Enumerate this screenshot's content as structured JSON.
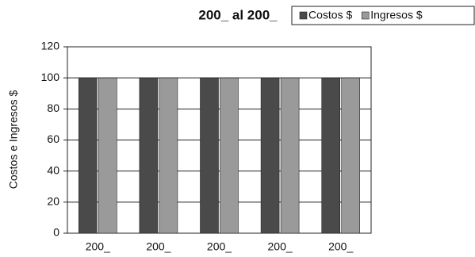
{
  "chart_data": {
    "type": "bar",
    "title": "200_ al 200_",
    "y_label": "Costos e Ingresos $",
    "categories": [
      "200_",
      "200_",
      "200_",
      "200_",
      "200_"
    ],
    "series": [
      {
        "name": "Costos $",
        "color": "#4a4a4a",
        "values": [
          100,
          100,
          100,
          100,
          100
        ]
      },
      {
        "name": "Ingresos $",
        "color": "#9a9a9a",
        "values": [
          100,
          100,
          100,
          100,
          100
        ]
      }
    ],
    "ylim": [
      0,
      120
    ],
    "yticks": [
      0,
      20,
      40,
      60,
      80,
      100,
      120
    ],
    "grid": true
  }
}
